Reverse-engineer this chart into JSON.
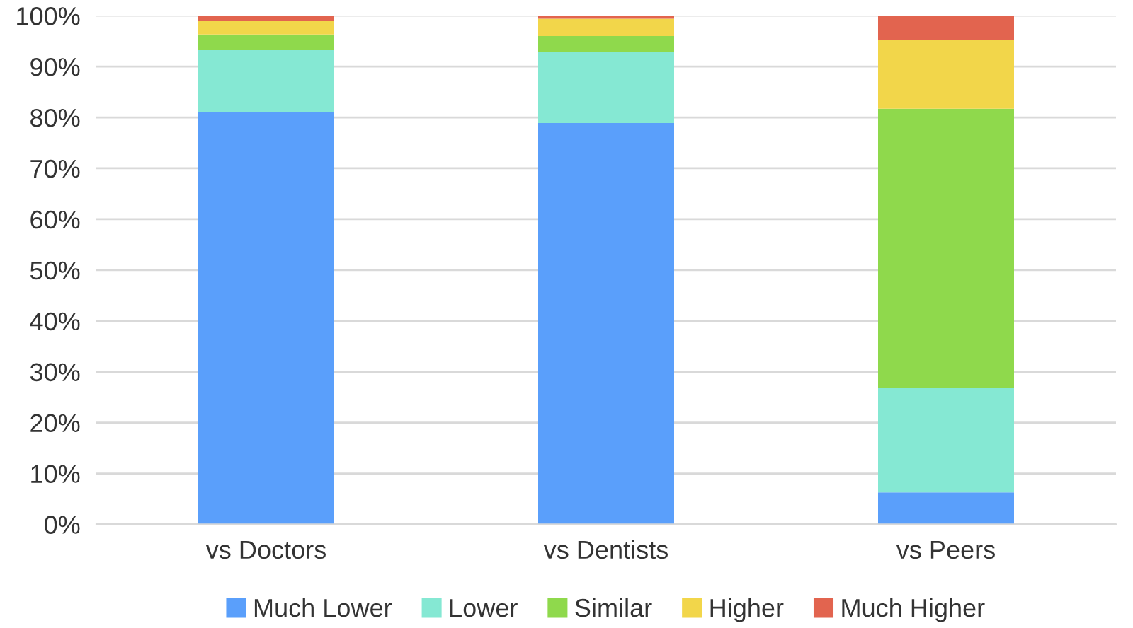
{
  "chart_data": {
    "type": "bar",
    "stacked": true,
    "categories": [
      "vs Doctors",
      "vs Dentists",
      "vs Peers"
    ],
    "series": [
      {
        "name": "Much Lower",
        "color": "#5a9ffb",
        "values": [
          81.0,
          78.9,
          6.3
        ]
      },
      {
        "name": "Lower",
        "color": "#85e8d3",
        "values": [
          12.3,
          13.9,
          20.6
        ]
      },
      {
        "name": "Similar",
        "color": "#8fd94c",
        "values": [
          3.0,
          3.2,
          54.8
        ]
      },
      {
        "name": "Higher",
        "color": "#f2d64a",
        "values": [
          2.7,
          3.4,
          13.6
        ]
      },
      {
        "name": "Much Higher",
        "color": "#e2644f",
        "values": [
          1.0,
          0.6,
          4.7
        ]
      }
    ],
    "ylim": [
      0,
      100
    ],
    "yticks": [
      {
        "value": 0,
        "label": "0%"
      },
      {
        "value": 10,
        "label": "10%"
      },
      {
        "value": 20,
        "label": "20%"
      },
      {
        "value": 30,
        "label": "30%"
      },
      {
        "value": 40,
        "label": "40%"
      },
      {
        "value": 50,
        "label": "50%"
      },
      {
        "value": 60,
        "label": "60%"
      },
      {
        "value": 70,
        "label": "70%"
      },
      {
        "value": 80,
        "label": "80%"
      },
      {
        "value": 90,
        "label": "90%"
      },
      {
        "value": 100,
        "label": "100%"
      }
    ],
    "grid": "y",
    "legend": "bottom"
  }
}
